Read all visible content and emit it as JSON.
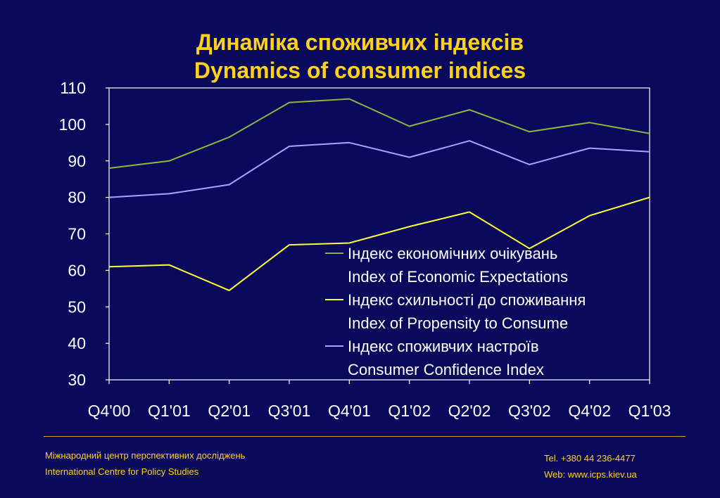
{
  "title": {
    "line1": "Динаміка споживчих індексів",
    "line2": "Dynamics of consumer indices"
  },
  "chart_data": {
    "type": "line",
    "x": [
      "Q4'00",
      "Q1'01",
      "Q2'01",
      "Q3'01",
      "Q4'01",
      "Q1'02",
      "Q2'02",
      "Q3'02",
      "Q4'02",
      "Q1'03"
    ],
    "ylim": [
      30,
      110
    ],
    "yticks": [
      30,
      40,
      50,
      60,
      70,
      80,
      90,
      100,
      110
    ],
    "grid": false,
    "legend_position": "inside-lower-right",
    "series": [
      {
        "name_line1": "Індекс економічних очікувань",
        "name_line2": "Index of Economic Expectations",
        "color": "#8db83a",
        "values": [
          88,
          90,
          96.5,
          106,
          107,
          99.5,
          104,
          98,
          100.5,
          97.5
        ]
      },
      {
        "name_line1": "Індекс схильності до споживання",
        "name_line2": "Index of Propensity to Consume",
        "color": "#ffff33",
        "values": [
          61,
          61.5,
          54.5,
          67,
          67.5,
          72,
          76,
          66,
          75,
          80
        ]
      },
      {
        "name_line1": "Індекс споживчих настроїв",
        "name_line2": "Consumer Confidence Index",
        "color": "#a5a5ff",
        "values": [
          80,
          81,
          83.5,
          94,
          95,
          91,
          95.5,
          89,
          93.5,
          92.5
        ]
      }
    ]
  },
  "footer": {
    "org_ua": "Міжнародний центр перспективних досліджень",
    "org_en": "International Centre for Policy Studies",
    "tel": "Tel. +380 44 236-4477",
    "web": "Web: www.icps.kiev.ua"
  }
}
